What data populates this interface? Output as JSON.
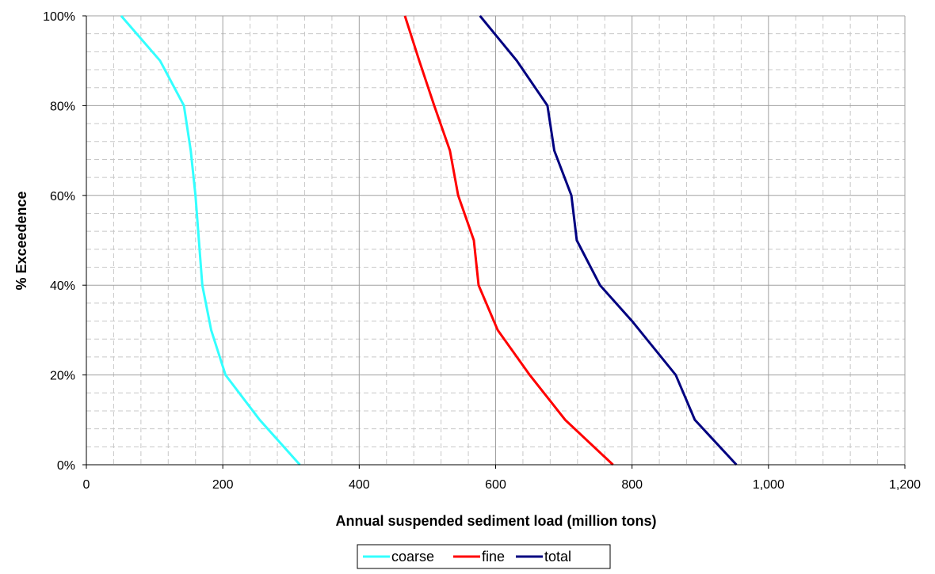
{
  "chart_data": {
    "type": "line",
    "title": "",
    "xlabel": "Annual suspended sediment load (million tons)",
    "ylabel": "% Exceedence",
    "xlim": [
      0,
      1200
    ],
    "ylim": [
      0,
      100
    ],
    "x_ticks": [
      0,
      200,
      400,
      600,
      800,
      1000,
      1200
    ],
    "x_tick_labels": [
      "0",
      "200",
      "400",
      "600",
      "800",
      "1,000",
      "1,200"
    ],
    "y_ticks": [
      0,
      20,
      40,
      60,
      80,
      100
    ],
    "y_tick_labels": [
      "0%",
      "20%",
      "40%",
      "60%",
      "80%",
      "100%"
    ],
    "grid": true,
    "minor_grid": true,
    "legend_position": "bottom-center",
    "series": [
      {
        "name": "coarse",
        "color": "#33ffff",
        "points": [
          [
            313,
            0
          ],
          [
            254,
            10
          ],
          [
            204,
            20
          ],
          [
            183,
            30
          ],
          [
            170,
            40
          ],
          [
            165,
            50
          ],
          [
            160,
            60
          ],
          [
            153,
            70
          ],
          [
            143,
            80
          ],
          [
            108,
            90
          ],
          [
            51,
            100
          ]
        ]
      },
      {
        "name": "fine",
        "color": "#ff0000",
        "points": [
          [
            772,
            0
          ],
          [
            702,
            10
          ],
          [
            650,
            20
          ],
          [
            603,
            30
          ],
          [
            575,
            40
          ],
          [
            568,
            50
          ],
          [
            545,
            60
          ],
          [
            533,
            70
          ],
          [
            510,
            80
          ],
          [
            488,
            90
          ],
          [
            467,
            100
          ]
        ]
      },
      {
        "name": "total",
        "color": "#000080",
        "points": [
          [
            953,
            0
          ],
          [
            892,
            10
          ],
          [
            864,
            20
          ],
          [
            800,
            32
          ],
          [
            753,
            40
          ],
          [
            719,
            50
          ],
          [
            711,
            60
          ],
          [
            686,
            70
          ],
          [
            676,
            80
          ],
          [
            631,
            90
          ],
          [
            577,
            100
          ]
        ]
      }
    ]
  }
}
